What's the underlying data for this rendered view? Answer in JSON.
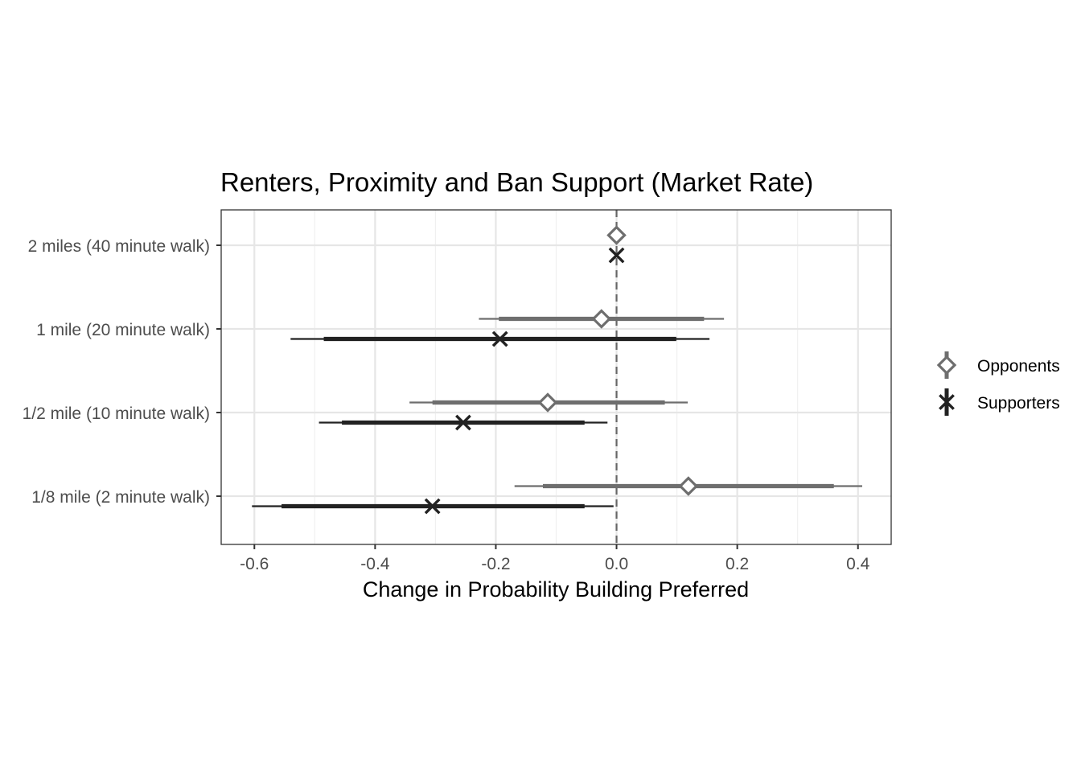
{
  "chart_data": {
    "type": "dot-errorbar",
    "title": "Renters, Proximity and Ban Support (Market Rate)",
    "xlabel": "Change in Probability Building Preferred",
    "ylabel": "",
    "xlim": [
      -0.655,
      0.455
    ],
    "xticks": [
      "-0.6",
      "-0.4",
      "-0.2",
      "0.0",
      "0.2",
      "0.4"
    ],
    "xtick_values": [
      -0.6,
      -0.4,
      -0.2,
      0.0,
      0.2,
      0.4
    ],
    "categories": [
      "2 miles (40 minute walk)",
      "1 mile (20 minute walk)",
      "1/2 mile (10 minute walk)",
      "1/8 mile (2 minute walk)"
    ],
    "reference_line": 0,
    "grid": true,
    "legend_position": "right",
    "series": [
      {
        "name": "Opponents",
        "marker": "diamond",
        "color": "#6e6e6e",
        "points": [
          {
            "estimate": 0.0,
            "ci_inner": [
              0.0,
              0.0
            ],
            "ci_outer": [
              0.0,
              0.0
            ]
          },
          {
            "estimate": -0.025,
            "ci_inner": [
              -0.195,
              0.145
            ],
            "ci_outer": [
              -0.228,
              0.178
            ]
          },
          {
            "estimate": -0.114,
            "ci_inner": [
              -0.305,
              0.08
            ],
            "ci_outer": [
              -0.343,
              0.118
            ]
          },
          {
            "estimate": 0.119,
            "ci_inner": [
              -0.122,
              0.36
            ],
            "ci_outer": [
              -0.169,
              0.407
            ]
          }
        ]
      },
      {
        "name": "Supporters",
        "marker": "x",
        "color": "#222222",
        "points": [
          {
            "estimate": 0.0,
            "ci_inner": [
              0.0,
              0.0
            ],
            "ci_outer": [
              0.0,
              0.0
            ]
          },
          {
            "estimate": -0.193,
            "ci_inner": [
              -0.485,
              0.099
            ],
            "ci_outer": [
              -0.54,
              0.154
            ]
          },
          {
            "estimate": -0.254,
            "ci_inner": [
              -0.455,
              -0.053
            ],
            "ci_outer": [
              -0.493,
              -0.015
            ]
          },
          {
            "estimate": -0.305,
            "ci_inner": [
              -0.555,
              -0.053
            ],
            "ci_outer": [
              -0.604,
              -0.005
            ]
          }
        ]
      }
    ]
  }
}
